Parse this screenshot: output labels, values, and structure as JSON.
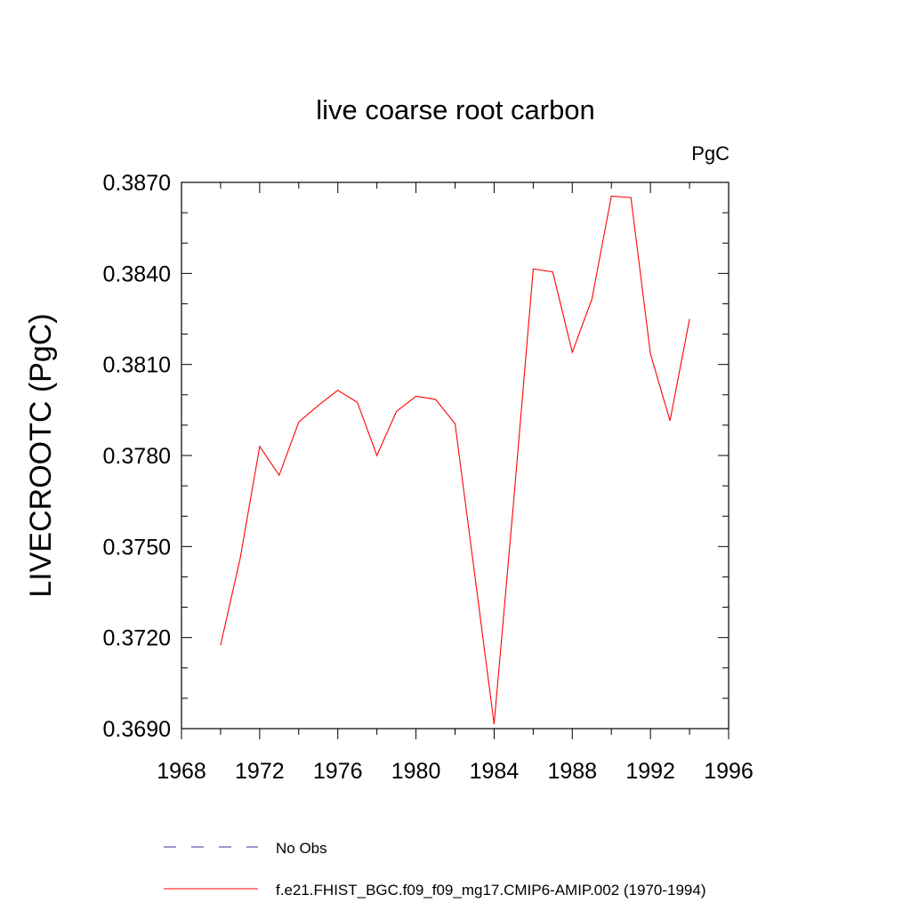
{
  "chart_data": {
    "type": "line",
    "title": "live coarse root carbon",
    "units_label": "PgC",
    "ylabel": "LIVECROOTC  (PgC)",
    "xlabel": "",
    "xlim": [
      1968,
      1996
    ],
    "ylim": [
      0.369,
      0.387
    ],
    "x_ticks": [
      1968,
      1972,
      1976,
      1980,
      1984,
      1988,
      1992,
      1996
    ],
    "x_tick_labels": [
      "1968",
      "1972",
      "1976",
      "1980",
      "1984",
      "1988",
      "1992",
      "1996"
    ],
    "y_ticks": [
      0.369,
      0.372,
      0.375,
      0.378,
      0.381,
      0.384,
      0.387
    ],
    "y_tick_labels": [
      "0.3690",
      "0.3720",
      "0.3750",
      "0.3780",
      "0.3810",
      "0.3840",
      "0.3870"
    ],
    "grid": false,
    "legend_position": "bottom",
    "series": [
      {
        "name": "f.e21.FHIST_BGC.f09_f09_mg17.CMIP6-AMIP.002 (1970-1994)",
        "color": "#ff0000",
        "style": "solid",
        "x": [
          1970,
          1971,
          1972,
          1973,
          1974,
          1975,
          1976,
          1977,
          1978,
          1979,
          1980,
          1981,
          1982,
          1983,
          1984,
          1985,
          1986,
          1987,
          1988,
          1989,
          1990,
          1991,
          1992,
          1993,
          1994
        ],
        "y": [
          0.37175,
          0.3746,
          0.3783,
          0.37735,
          0.3791,
          0.37965,
          0.38015,
          0.37975,
          0.378,
          0.37945,
          0.37995,
          0.37985,
          0.37905,
          0.3741,
          0.36915,
          0.3765,
          0.38415,
          0.38405,
          0.3814,
          0.38315,
          0.38655,
          0.3865,
          0.38135,
          0.37915,
          0.3825
        ]
      }
    ],
    "legend": [
      {
        "label": "No Obs",
        "color": "#3030a0",
        "style": "dashed"
      },
      {
        "label": "f.e21.FHIST_BGC.f09_f09_mg17.CMIP6-AMIP.002 (1970-1994)",
        "color": "#ff0000",
        "style": "solid"
      }
    ]
  }
}
